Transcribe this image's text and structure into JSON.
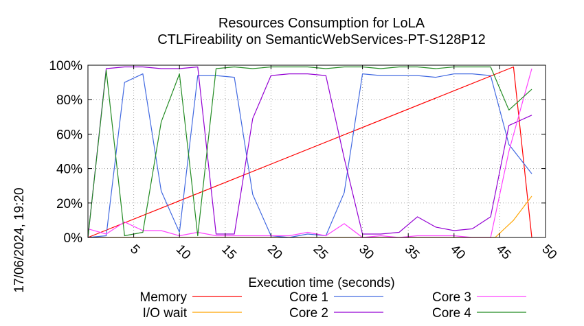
{
  "chart_data": {
    "type": "line",
    "title": "Resources Consumption for LoLA",
    "subtitle": "CTLFireability on SemanticWebServices-PT-S128P12",
    "xlabel": "Execution time (seconds)",
    "ylabel": "",
    "timestamp": "17/06/2024, 19:20",
    "xlim": [
      0,
      50
    ],
    "ylim": [
      0,
      100
    ],
    "xticks": [
      5,
      10,
      15,
      20,
      25,
      30,
      35,
      40,
      45,
      50
    ],
    "yticks": [
      0,
      20,
      40,
      60,
      80,
      100
    ],
    "ytick_labels": [
      "0%",
      "20%",
      "40%",
      "60%",
      "80%",
      "100%"
    ],
    "legend_position": "bottom",
    "series": [
      {
        "name": "Memory",
        "color": "#ff0000",
        "x": [
          0,
          46.5,
          48.5
        ],
        "y": [
          0,
          99,
          0
        ]
      },
      {
        "name": "I/O wait",
        "color": "#ffa500",
        "x": [
          0,
          44.5,
          46.5,
          48.5
        ],
        "y": [
          0,
          0,
          10,
          24
        ]
      },
      {
        "name": "Core 1",
        "color": "#4169e1",
        "x": [
          0,
          2,
          4,
          6,
          8,
          10,
          12,
          14,
          16,
          18,
          20,
          22,
          24,
          26,
          28,
          30,
          32,
          34,
          36,
          38,
          40,
          42,
          44,
          46,
          48.5
        ],
        "y": [
          0,
          1,
          90,
          95,
          27,
          3,
          94,
          94,
          93,
          25,
          1,
          0,
          2,
          1,
          26,
          95,
          94,
          94,
          94,
          93,
          95,
          95,
          94,
          54,
          37
        ]
      },
      {
        "name": "Core 2",
        "color": "#9400d3",
        "x": [
          0,
          2,
          4,
          6,
          8,
          10,
          12,
          14,
          16,
          18,
          20,
          22,
          24,
          26,
          28,
          30,
          32,
          34,
          36,
          38,
          40,
          42,
          44,
          46,
          48.5
        ],
        "y": [
          0,
          98,
          99,
          99,
          98,
          98,
          99,
          2,
          2,
          69,
          94,
          95,
          95,
          94,
          46,
          2,
          2,
          3,
          12,
          6,
          4,
          5,
          12,
          65,
          71
        ]
      },
      {
        "name": "Core 3",
        "color": "#ff40ff",
        "x": [
          0,
          2,
          4,
          6,
          8,
          10,
          12,
          14,
          16,
          18,
          20,
          22,
          24,
          26,
          28,
          30,
          32,
          34,
          36,
          38,
          40,
          42,
          44,
          46,
          48.5
        ],
        "y": [
          5,
          2,
          9,
          4,
          4,
          1,
          3,
          1,
          1,
          1,
          1,
          1,
          3,
          1,
          8,
          0,
          1,
          0,
          1,
          1,
          1,
          0,
          0,
          50,
          98
        ]
      },
      {
        "name": "Core 4",
        "color": "#228b22",
        "x": [
          0,
          2,
          4,
          6,
          8,
          10,
          12,
          14,
          16,
          18,
          20,
          22,
          24,
          26,
          28,
          30,
          32,
          34,
          36,
          38,
          40,
          42,
          44,
          46,
          48.5
        ],
        "y": [
          0,
          97,
          1,
          3,
          67,
          95,
          1,
          98,
          99,
          98,
          99,
          99,
          99,
          98,
          99,
          99,
          98,
          99,
          99,
          98,
          99,
          99,
          99,
          74,
          86
        ]
      }
    ]
  }
}
